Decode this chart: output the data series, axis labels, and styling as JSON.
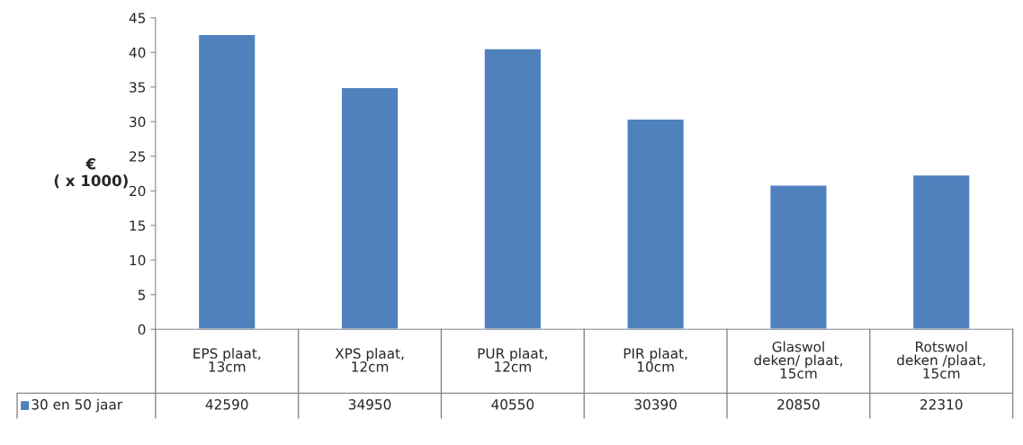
{
  "chart_data": {
    "type": "bar",
    "ylabel": "€\n( x 1000)",
    "categories": [
      "EPS plaat,\n13cm",
      "XPS plaat,\n12cm",
      "PUR plaat,\n12cm",
      "PIR plaat,\n10cm",
      "Glaswol\ndeken/ plaat,\n15cm",
      "Rotswol\ndeken /plaat,\n15cm"
    ],
    "series": [
      {
        "name": "30 en 50 jaar",
        "color": "#4f81bd",
        "values": [
          42.59,
          34.95,
          40.55,
          30.39,
          20.85,
          22.31
        ]
      }
    ],
    "annotations": [
      "42590",
      "34950",
      "40550",
      "30390",
      "20850",
      "22310"
    ],
    "ylim": [
      0,
      45
    ],
    "yticks": [
      0,
      5,
      10,
      15,
      20,
      25,
      30,
      35,
      40,
      45
    ],
    "grid": false,
    "legend": "bottom"
  }
}
